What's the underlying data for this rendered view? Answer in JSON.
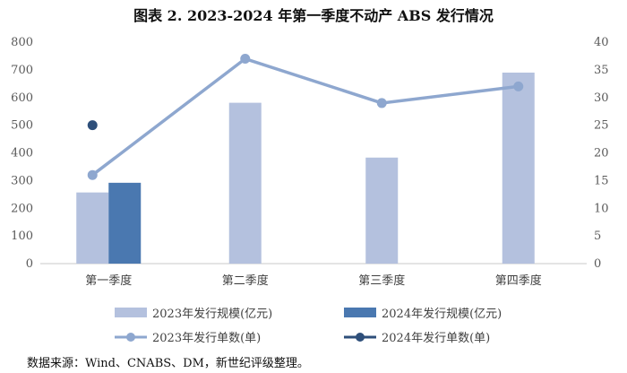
{
  "chart_data": {
    "type": "bar",
    "title": "图表 2.  2023-2024 年第一季度不动产 ABS 发行情况",
    "categories": [
      "第一季度",
      "第二季度",
      "第三季度",
      "第四季度"
    ],
    "series": [
      {
        "name": "2023年发行规模(亿元)",
        "kind": "bar",
        "axis": "left",
        "values": [
          257,
          581,
          383,
          690
        ],
        "color": "#b4c1de"
      },
      {
        "name": "2024年发行规模(亿元)",
        "kind": "bar",
        "axis": "left",
        "values": [
          292,
          null,
          null,
          null
        ],
        "color": "#4a78b0"
      },
      {
        "name": "2023年发行单数(单)",
        "kind": "line",
        "axis": "right",
        "values": [
          16,
          37,
          29,
          32
        ],
        "color": "#8ea7cf"
      },
      {
        "name": "2024年发行单数(单)",
        "kind": "line",
        "axis": "right",
        "values": [
          25,
          null,
          null,
          null
        ],
        "color": "#2e4f7a"
      }
    ],
    "y_left": {
      "min": 0,
      "max": 800,
      "ticks": [
        0,
        100,
        200,
        300,
        400,
        500,
        600,
        700,
        800
      ]
    },
    "y_right": {
      "min": 0,
      "max": 40,
      "ticks": [
        0,
        5,
        10,
        15,
        20,
        25,
        30,
        35,
        40
      ]
    },
    "grid": false,
    "legend_position": "bottom"
  },
  "source_note": "数据来源：Wind、CNABS、DM，新世纪评级整理。"
}
